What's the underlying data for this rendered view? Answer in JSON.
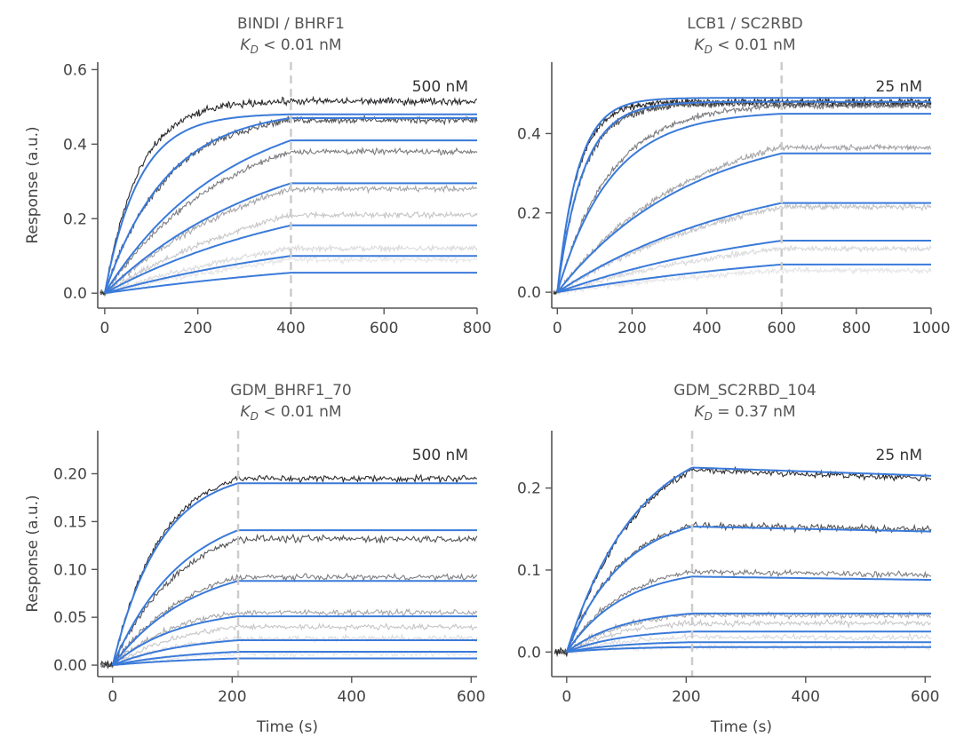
{
  "figure": {
    "colors": {
      "fit": "#3a7ad9",
      "dashed": "#cccccc",
      "axis": "#555555",
      "traces": [
        "#2b2b2e",
        "#545457",
        "#7e7e82",
        "#a6a6a9",
        "#c6c6c9",
        "#dadadd",
        "#e6e6e9"
      ]
    }
  },
  "chart_data": [
    {
      "type": "line",
      "title": "BINDI / BHRF1",
      "kd_symbol": "K",
      "kd_sub": "D",
      "kd_text": " < 0.01 nM",
      "top_concentration_label": "500 nM",
      "xlabel": "",
      "ylabel": "Response (a.u.)",
      "xlim": [
        -15,
        800
      ],
      "ylim": [
        -0.04,
        0.62
      ],
      "xticks": [
        0,
        200,
        400,
        600,
        800
      ],
      "xtick_labels": [
        "0",
        "200",
        "400",
        "600",
        "800"
      ],
      "yticks": [
        0.0,
        0.2,
        0.4,
        0.6
      ],
      "ytick_labels": [
        "0.0",
        "0.2",
        "0.4",
        "0.6"
      ],
      "association_end": 400,
      "x_end": 800,
      "series": [
        {
          "data_plateau": 0.515,
          "fit_plateau": 0.48,
          "kobs": 0.0135,
          "dissociation_slope": 0.0
        },
        {
          "data_plateau": 0.465,
          "fit_plateau": 0.47,
          "kobs": 0.0075,
          "dissociation_slope": 0.0
        },
        {
          "data_plateau": 0.38,
          "fit_plateau": 0.41,
          "kobs": 0.0038,
          "dissociation_slope": 0.0
        },
        {
          "data_plateau": 0.28,
          "fit_plateau": 0.295,
          "kobs": 0.0028,
          "dissociation_slope": 0.0
        },
        {
          "data_plateau": 0.21,
          "fit_plateau": 0.182,
          "kobs": 0.0022,
          "dissociation_slope": 0.0
        },
        {
          "data_plateau": 0.12,
          "fit_plateau": 0.1,
          "kobs": 0.0018,
          "dissociation_slope": 0.0
        },
        {
          "data_plateau": 0.09,
          "fit_plateau": 0.055,
          "kobs": 0.0014,
          "dissociation_slope": 0.0
        }
      ]
    },
    {
      "type": "line",
      "title": "LCB1 / SC2RBD",
      "kd_symbol": "K",
      "kd_sub": "D",
      "kd_text": " < 0.01 nM",
      "top_concentration_label": "25 nM",
      "xlabel": "",
      "ylabel": "",
      "xlim": [
        -15,
        1000
      ],
      "ylim": [
        -0.04,
        0.58
      ],
      "xticks": [
        0,
        200,
        400,
        600,
        800,
        1000
      ],
      "xtick_labels": [
        "0",
        "200",
        "400",
        "600",
        "800",
        "1000"
      ],
      "yticks": [
        0.0,
        0.2,
        0.4
      ],
      "ytick_labels": [
        "0.0",
        "0.2",
        "0.4"
      ],
      "association_end": 600,
      "x_end": 1000,
      "series": [
        {
          "data_plateau": 0.48,
          "fit_plateau": 0.49,
          "kobs": 0.018,
          "dissociation_slope": 0.0
        },
        {
          "data_plateau": 0.475,
          "fit_plateau": 0.48,
          "kobs": 0.0145,
          "dissociation_slope": 0.0
        },
        {
          "data_plateau": 0.47,
          "fit_plateau": 0.45,
          "kobs": 0.007,
          "dissociation_slope": 0.0
        },
        {
          "data_plateau": 0.365,
          "fit_plateau": 0.35,
          "kobs": 0.0028,
          "dissociation_slope": 0.0
        },
        {
          "data_plateau": 0.215,
          "fit_plateau": 0.225,
          "kobs": 0.0019,
          "dissociation_slope": 0.0
        },
        {
          "data_plateau": 0.11,
          "fit_plateau": 0.13,
          "kobs": 0.0016,
          "dissociation_slope": 0.0
        },
        {
          "data_plateau": 0.055,
          "fit_plateau": 0.07,
          "kobs": 0.0013,
          "dissociation_slope": 0.0
        }
      ]
    },
    {
      "type": "line",
      "title": "GDM_BHRF1_70",
      "kd_symbol": "K",
      "kd_sub": "D",
      "kd_text": " < 0.01 nM",
      "top_concentration_label": "500 nM",
      "xlabel": "Time (s)",
      "ylabel": "Response (a.u.)",
      "xlim": [
        -25,
        610
      ],
      "ylim": [
        -0.012,
        0.245
      ],
      "xticks": [
        0,
        200,
        400,
        600
      ],
      "xtick_labels": [
        "0",
        "200",
        "400",
        "600"
      ],
      "yticks": [
        0.0,
        0.05,
        0.1,
        0.15,
        0.2
      ],
      "ytick_labels": [
        "0.00",
        "0.05",
        "0.10",
        "0.15",
        "0.20"
      ],
      "association_end": 210,
      "x_end": 610,
      "series": [
        {
          "data_plateau": 0.195,
          "fit_plateau": 0.19,
          "kobs": 0.0125,
          "dissociation_slope": 0.0
        },
        {
          "data_plateau": 0.132,
          "fit_plateau": 0.141,
          "kobs": 0.0085,
          "dissociation_slope": 0.0
        },
        {
          "data_plateau": 0.092,
          "fit_plateau": 0.088,
          "kobs": 0.0075,
          "dissociation_slope": 0.0
        },
        {
          "data_plateau": 0.055,
          "fit_plateau": 0.051,
          "kobs": 0.009,
          "dissociation_slope": 0.0
        },
        {
          "data_plateau": 0.04,
          "fit_plateau": 0.026,
          "kobs": 0.008,
          "dissociation_slope": 0.0
        },
        {
          "data_plateau": 0.028,
          "fit_plateau": 0.014,
          "kobs": 0.007,
          "dissociation_slope": 0.0
        },
        {
          "data_plateau": 0.012,
          "fit_plateau": 0.007,
          "kobs": 0.006,
          "dissociation_slope": 0.0
        }
      ]
    },
    {
      "type": "line",
      "title": "GDM_SC2RBD_104",
      "kd_symbol": "K",
      "kd_sub": "D",
      "kd_text": " = 0.37 nM",
      "top_concentration_label": "25 nM",
      "xlabel": "Time (s)",
      "ylabel": "",
      "xlim": [
        -25,
        610
      ],
      "ylim": [
        -0.03,
        0.27
      ],
      "xticks": [
        0,
        200,
        400,
        600
      ],
      "xtick_labels": [
        "0",
        "200",
        "400",
        "600"
      ],
      "yticks": [
        0.0,
        0.1,
        0.2
      ],
      "ytick_labels": [
        "0.0",
        "0.1",
        "0.2"
      ],
      "association_end": 210,
      "x_end": 610,
      "series": [
        {
          "data_plateau": 0.222,
          "fit_plateau": 0.225,
          "kobs": 0.0085,
          "dissociation_slope": -2.5e-05
        },
        {
          "data_plateau": 0.155,
          "fit_plateau": 0.153,
          "kobs": 0.0105,
          "dissociation_slope": -1.5e-05
        },
        {
          "data_plateau": 0.098,
          "fit_plateau": 0.092,
          "kobs": 0.0105,
          "dissociation_slope": -1e-05
        },
        {
          "data_plateau": 0.045,
          "fit_plateau": 0.047,
          "kobs": 0.0105,
          "dissociation_slope": 0.0
        },
        {
          "data_plateau": 0.035,
          "fit_plateau": 0.025,
          "kobs": 0.0105,
          "dissociation_slope": 0.0
        },
        {
          "data_plateau": 0.018,
          "fit_plateau": 0.012,
          "kobs": 0.0105,
          "dissociation_slope": 0.0
        },
        {
          "data_plateau": 0.006,
          "fit_plateau": 0.006,
          "kobs": 0.0105,
          "dissociation_slope": 0.0
        }
      ]
    }
  ]
}
